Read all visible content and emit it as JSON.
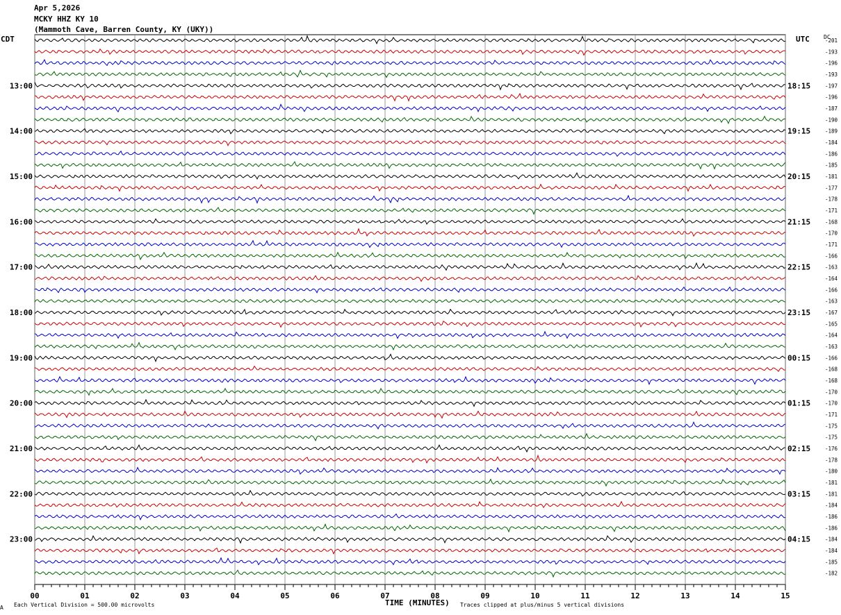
{
  "header": {
    "date": "Apr 5,2026",
    "station": "MCKY HHZ KY 10",
    "location": "(Mammoth Cave, Barren County, KY (UKY))"
  },
  "left_tz": "CDT",
  "right_tz": "UTC",
  "dc_label": "DC",
  "footer": {
    "scale_text": "Each Vertical Division =  500.00 microvolts",
    "clip_text": "Traces clipped at plus/minus 5 vertical divisions",
    "corner_mark": "A"
  },
  "colors": {
    "trace_cycle": [
      "#000000",
      "#cc0000",
      "#0000cc",
      "#006600"
    ],
    "grid": "#808080"
  },
  "chart_data": {
    "type": "line",
    "title": "MCKY HHZ KY 10",
    "xlabel": "TIME (MINUTES)",
    "xlim": [
      0,
      15
    ],
    "x_ticks": [
      "00",
      "01",
      "02",
      "03",
      "04",
      "05",
      "06",
      "07",
      "08",
      "09",
      "10",
      "11",
      "12",
      "13",
      "14",
      "15"
    ],
    "rows_per_hour": 4,
    "left_hour_labels": [
      "13:00",
      "14:00",
      "15:00",
      "16:00",
      "17:00",
      "18:00",
      "19:00",
      "20:00",
      "21:00",
      "22:00",
      "23:00"
    ],
    "right_hour_labels": [
      "18:15",
      "19:15",
      "20:15",
      "21:15",
      "22:15",
      "23:15",
      "00:15",
      "01:15",
      "02:15",
      "03:15",
      "04:15"
    ],
    "first_hour_label_row": 4,
    "dc_offsets": [
      -201,
      -193,
      -196,
      -193,
      -197,
      -196,
      -187,
      -190,
      -189,
      -184,
      -186,
      -185,
      -181,
      -177,
      -178,
      -171,
      -168,
      -170,
      -171,
      -166,
      -163,
      -164,
      -166,
      -163,
      -167,
      -165,
      -164,
      -163,
      -166,
      -168,
      -168,
      -170,
      -170,
      -171,
      -175,
      -175,
      -176,
      -178,
      -180,
      -181,
      -181,
      -184,
      -186,
      -186,
      -184,
      -184,
      -185,
      -182
    ]
  }
}
